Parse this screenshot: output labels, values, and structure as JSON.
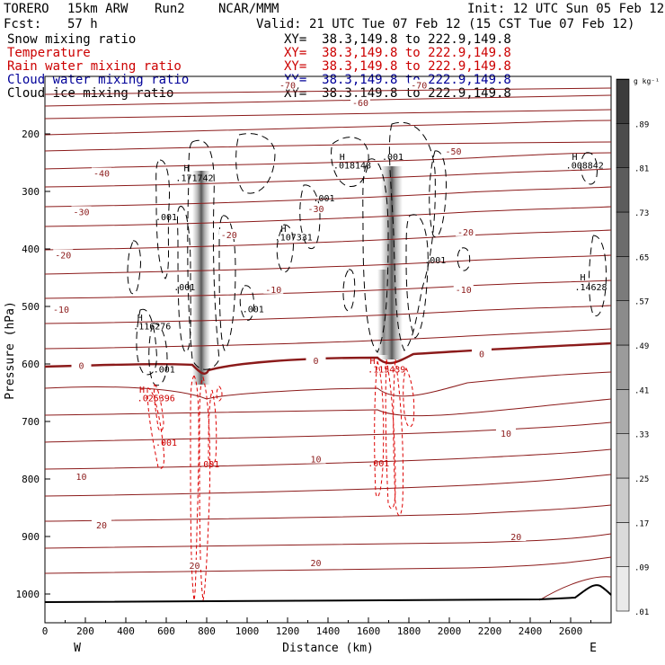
{
  "header": {
    "model": "TORERO",
    "resolution": "15km ARW",
    "run": "Run2",
    "center": "NCAR/MMM",
    "init": "Init: 12 UTC Sun 05 Feb 12",
    "fcst_label": "Fcst:",
    "fcst_value": "57 h",
    "valid": "Valid: 21 UTC Tue 07 Feb 12 (15 CST Tue 07 Feb 12)"
  },
  "fields": [
    {
      "name": "Snow mixing ratio",
      "xy": "XY=  38.3,149.8 to 222.9,149.8",
      "color": "#000000"
    },
    {
      "name": "Temperature",
      "xy": "XY=  38.3,149.8 to 222.9,149.8",
      "color": "#cc0000"
    },
    {
      "name": "Rain water mixing ratio",
      "xy": "XY=  38.3,149.8 to 222.9,149.8",
      "color": "#cc0000"
    },
    {
      "name": "Cloud water mixing ratio",
      "xy": "XY=  38.3,149.8 to 222.9,149.8",
      "color": "#000099"
    },
    {
      "name": "Cloud ice mixing ratio",
      "xy": "XY=  38.3,149.8 to 222.9,149.8",
      "color": "#000000"
    }
  ],
  "chart_data": {
    "type": "heatmap",
    "xlabel": "Distance (km)",
    "ylabel": "Pressure (hPa)",
    "xlim": [
      0,
      2800
    ],
    "ylim": [
      100,
      1050
    ],
    "x_ticks": [
      0,
      200,
      400,
      600,
      800,
      1000,
      1200,
      1400,
      1600,
      1800,
      2000,
      2200,
      2400,
      2600
    ],
    "y_ticks": [
      200,
      300,
      400,
      500,
      600,
      700,
      800,
      900,
      1000
    ],
    "west_label": "W",
    "east_label": "E",
    "colorbar": {
      "unit": "g kg⁻¹",
      "levels": [
        ".01",
        ".09",
        ".17",
        ".25",
        ".33",
        ".41",
        ".49",
        ".57",
        ".65",
        ".73",
        ".81",
        ".89"
      ]
    },
    "temperature_contours": [
      {
        "label": "-70",
        "x": 1200,
        "p": 115
      },
      {
        "label": "-70",
        "x": 1850,
        "p": 115
      },
      {
        "label": "-60",
        "x": 1560,
        "p": 145
      },
      {
        "label": "-50",
        "x": 2020,
        "p": 230
      },
      {
        "label": "-40",
        "x": 280,
        "p": 268
      },
      {
        "label": "-30",
        "x": 180,
        "p": 335
      },
      {
        "label": "-30",
        "x": 1340,
        "p": 330
      },
      {
        "label": "-20",
        "x": 90,
        "p": 410
      },
      {
        "label": "-20",
        "x": 910,
        "p": 375
      },
      {
        "label": "-20",
        "x": 2080,
        "p": 370
      },
      {
        "label": "-10",
        "x": 80,
        "p": 505
      },
      {
        "label": "-10",
        "x": 1130,
        "p": 470
      },
      {
        "label": "-10",
        "x": 2070,
        "p": 470
      },
      {
        "label": "0",
        "x": 180,
        "p": 602
      },
      {
        "label": "0",
        "x": 1340,
        "p": 594
      },
      {
        "label": "0",
        "x": 2160,
        "p": 582
      },
      {
        "label": "10",
        "x": 180,
        "p": 795
      },
      {
        "label": "10",
        "x": 1340,
        "p": 765
      },
      {
        "label": "10",
        "x": 2280,
        "p": 720
      },
      {
        "label": "20",
        "x": 280,
        "p": 880
      },
      {
        "label": "20",
        "x": 740,
        "p": 950
      },
      {
        "label": "20",
        "x": 1340,
        "p": 945
      },
      {
        "label": "20",
        "x": 2330,
        "p": 900
      }
    ],
    "annotations": [
      {
        "text": "H",
        "x": 700,
        "p": 265,
        "color": "#000000"
      },
      {
        "text": ".171742",
        "x": 740,
        "p": 282,
        "color": "#000000"
      },
      {
        "text": "H",
        "x": 1470,
        "p": 245,
        "color": "#000000"
      },
      {
        "text": ".018148",
        "x": 1520,
        "p": 260,
        "color": "#000000"
      },
      {
        "text": "H",
        "x": 1180,
        "p": 370,
        "color": "#000000"
      },
      {
        "text": ".107331",
        "x": 1230,
        "p": 385,
        "color": "#000000"
      },
      {
        "text": "H",
        "x": 2620,
        "p": 245,
        "color": "#000000"
      },
      {
        "text": ".008842",
        "x": 2670,
        "p": 260,
        "color": "#000000"
      },
      {
        "text": "H",
        "x": 2660,
        "p": 455,
        "color": "#000000"
      },
      {
        "text": ".14628",
        "x": 2700,
        "p": 472,
        "color": "#000000"
      },
      {
        "text": "H",
        "x": 470,
        "p": 525,
        "color": "#000000"
      },
      {
        "text": ".116276",
        "x": 530,
        "p": 540,
        "color": "#000000"
      },
      {
        "text": ".001",
        "x": 600,
        "p": 350,
        "color": "#000000"
      },
      {
        "text": ".001",
        "x": 690,
        "p": 472,
        "color": "#000000"
      },
      {
        "text": ".001",
        "x": 1030,
        "p": 510,
        "color": "#000000"
      },
      {
        "text": ".001",
        "x": 1380,
        "p": 317,
        "color": "#000000"
      },
      {
        "text": ".001",
        "x": 1720,
        "p": 245,
        "color": "#000000"
      },
      {
        "text": ".001",
        "x": 1930,
        "p": 425,
        "color": "#000000"
      },
      {
        "text": ".001",
        "x": 590,
        "p": 615,
        "color": "#000000"
      },
      {
        "text": "H",
        "x": 480,
        "p": 650,
        "color": "#cc0000"
      },
      {
        "text": ".025396",
        "x": 550,
        "p": 665,
        "color": "#cc0000"
      },
      {
        "text": "H",
        "x": 1620,
        "p": 600,
        "color": "#cc0000"
      },
      {
        "text": ".115439",
        "x": 1690,
        "p": 615,
        "color": "#cc0000"
      },
      {
        "text": ".001",
        "x": 600,
        "p": 742,
        "color": "#cc0000"
      },
      {
        "text": ".001",
        "x": 810,
        "p": 780,
        "color": "#cc0000"
      },
      {
        "text": ".001",
        "x": 1650,
        "p": 778,
        "color": "#cc0000"
      }
    ]
  }
}
